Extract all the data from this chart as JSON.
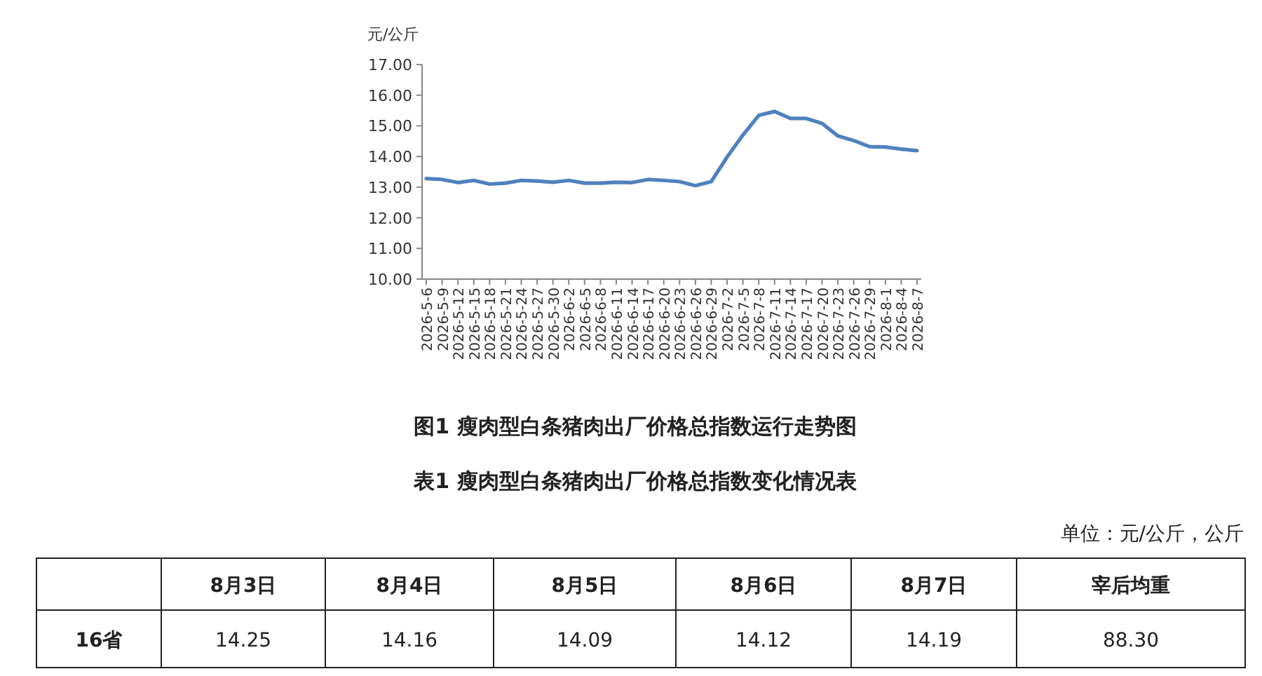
{
  "chart_data": [
    {
      "type": "line",
      "title": "图1 瘦肉型白条猪肉出厂价格总指数运行走势图",
      "ylabel": "元/公斤",
      "categories": [
        "2026-5-6",
        "2026-5-9",
        "2026-5-12",
        "2026-5-15",
        "2026-5-18",
        "2026-5-21",
        "2026-5-24",
        "2026-5-27",
        "2026-5-30",
        "2026-6-2",
        "2026-6-5",
        "2026-6-8",
        "2026-6-11",
        "2026-6-14",
        "2026-6-17",
        "2026-6-20",
        "2026-6-23",
        "2026-6-26",
        "2026-6-29",
        "2026-7-2",
        "2026-7-5",
        "2026-7-8",
        "2026-7-11",
        "2026-7-14",
        "2026-7-17",
        "2026-7-20",
        "2026-7-23",
        "2026-7-26",
        "2026-7-29",
        "2026-8-1",
        "2026-8-4",
        "2026-8-7"
      ],
      "series": [
        {
          "color": "#4f81bd",
          "values": [
            13.28,
            13.25,
            13.15,
            13.22,
            13.1,
            13.13,
            13.22,
            13.2,
            13.16,
            13.22,
            13.13,
            13.13,
            13.16,
            13.15,
            13.25,
            13.22,
            13.18,
            13.05,
            13.18,
            13.98,
            14.7,
            15.34,
            15.47,
            15.24,
            15.24,
            15.08,
            14.67,
            14.52,
            14.32,
            14.31,
            14.24,
            14.19
          ]
        }
      ],
      "ylim": [
        10,
        17
      ],
      "yticks": [
        {
          "value": 10,
          "label": "10.00"
        },
        {
          "value": 11,
          "label": "11.00"
        },
        {
          "value": 12,
          "label": "12.00"
        },
        {
          "value": 13,
          "label": "13.00"
        },
        {
          "value": 14,
          "label": "14.00"
        },
        {
          "value": 15,
          "label": "15.00"
        },
        {
          "value": 16,
          "label": "16.00"
        },
        {
          "value": 17,
          "label": "17.00"
        }
      ],
      "grid": false,
      "marker": "none",
      "line_style": "solid"
    },
    {
      "type": "other",
      "title": "表1 瘦肉型白条猪肉出厂价格总指数变化情况表",
      "subtitle": "单位：元/公斤，公斤",
      "categories": [
        "8月3日",
        "8月4日",
        "8月5日",
        "8月6日",
        "8月7日",
        "宰后均重"
      ],
      "series": [
        {
          "name": "16省",
          "values": [
            14.25,
            14.16,
            14.09,
            14.12,
            14.19,
            88.3
          ],
          "value_labels": [
            "14.25",
            "14.16",
            "14.09",
            "14.12",
            "14.19",
            "88.30"
          ]
        }
      ]
    }
  ]
}
